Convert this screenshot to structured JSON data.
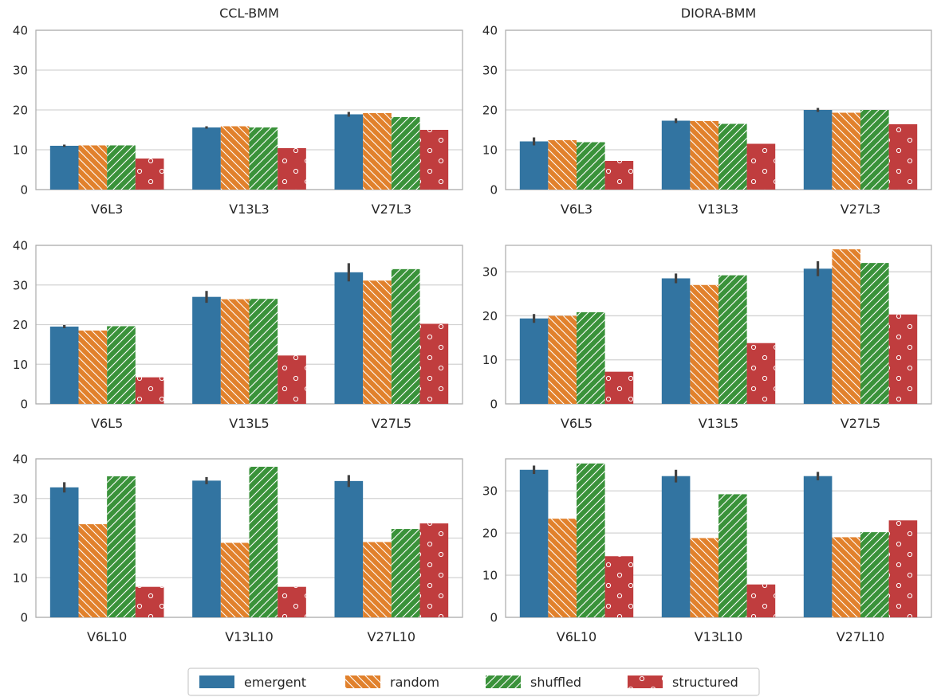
{
  "colors": {
    "emergent": "#3274a1",
    "random": "#e1812c",
    "shuffled": "#3a923a",
    "structured": "#c03d3e",
    "grid": "#d3d3d3",
    "axis": "#b0b0b0",
    "text": "#262626"
  },
  "legend": {
    "placement": "bottom-center",
    "items": [
      {
        "name": "emergent",
        "hatch": "none"
      },
      {
        "name": "random",
        "hatch": "backslash"
      },
      {
        "name": "shuffled",
        "hatch": "slash"
      },
      {
        "name": "structured",
        "hatch": "circles"
      }
    ]
  },
  "chart_data": [
    {
      "type": "bar",
      "title": "CCL-BMM",
      "row": 0,
      "col": 0,
      "categories": [
        "V6L3",
        "V13L3",
        "V27L3"
      ],
      "ylim": [
        0,
        40
      ],
      "yticks": [
        0,
        10,
        20,
        30,
        40
      ],
      "grid": true,
      "series": [
        {
          "name": "emergent",
          "values": [
            11.0,
            15.6,
            18.9
          ],
          "errors": [
            0.3,
            0.3,
            0.6
          ]
        },
        {
          "name": "random",
          "values": [
            11.1,
            15.9,
            19.2
          ]
        },
        {
          "name": "shuffled",
          "values": [
            11.1,
            15.6,
            18.2
          ]
        },
        {
          "name": "structured",
          "values": [
            7.8,
            10.4,
            15.0
          ]
        }
      ]
    },
    {
      "type": "bar",
      "title": "DIORA-BMM",
      "row": 0,
      "col": 1,
      "categories": [
        "V6L3",
        "V13L3",
        "V27L3"
      ],
      "ylim": [
        0,
        40
      ],
      "yticks": [
        0,
        10,
        20,
        30,
        40
      ],
      "grid": true,
      "series": [
        {
          "name": "emergent",
          "values": [
            12.1,
            17.3,
            20.0
          ],
          "errors": [
            1.0,
            0.6,
            0.5
          ]
        },
        {
          "name": "random",
          "values": [
            12.4,
            17.2,
            19.3
          ]
        },
        {
          "name": "shuffled",
          "values": [
            11.9,
            16.5,
            20.0
          ]
        },
        {
          "name": "structured",
          "values": [
            7.2,
            11.5,
            16.4
          ]
        }
      ]
    },
    {
      "type": "bar",
      "row": 1,
      "col": 0,
      "categories": [
        "V6L5",
        "V13L5",
        "V27L5"
      ],
      "ylim": [
        0,
        40
      ],
      "yticks": [
        0,
        10,
        20,
        30,
        40
      ],
      "grid": true,
      "series": [
        {
          "name": "emergent",
          "values": [
            19.5,
            27.0,
            33.2
          ],
          "errors": [
            0.4,
            1.5,
            2.3
          ]
        },
        {
          "name": "random",
          "values": [
            18.5,
            26.4,
            31.1
          ]
        },
        {
          "name": "shuffled",
          "values": [
            19.6,
            26.5,
            34.0
          ]
        },
        {
          "name": "structured",
          "values": [
            6.7,
            12.2,
            20.2
          ]
        }
      ]
    },
    {
      "type": "bar",
      "row": 1,
      "col": 1,
      "categories": [
        "V6L5",
        "V13L5",
        "V27L5"
      ],
      "ylim": [
        0,
        36
      ],
      "yticks": [
        0,
        10,
        20,
        30
      ],
      "grid": true,
      "series": [
        {
          "name": "emergent",
          "values": [
            19.4,
            28.5,
            30.7
          ],
          "errors": [
            1.0,
            1.1,
            1.7
          ]
        },
        {
          "name": "random",
          "values": [
            20.0,
            27.0,
            35.1
          ]
        },
        {
          "name": "shuffled",
          "values": [
            20.8,
            29.2,
            32.0
          ]
        },
        {
          "name": "structured",
          "values": [
            7.3,
            13.8,
            20.3
          ]
        }
      ]
    },
    {
      "type": "bar",
      "row": 2,
      "col": 0,
      "categories": [
        "V6L10",
        "V13L10",
        "V27L10"
      ],
      "ylim": [
        0,
        40
      ],
      "yticks": [
        0,
        10,
        20,
        30,
        40
      ],
      "grid": true,
      "series": [
        {
          "name": "emergent",
          "values": [
            32.8,
            34.5,
            34.4
          ],
          "errors": [
            1.3,
            0.9,
            1.5
          ]
        },
        {
          "name": "random",
          "values": [
            23.5,
            18.8,
            19.0
          ]
        },
        {
          "name": "shuffled",
          "values": [
            35.6,
            38.0,
            22.3
          ]
        },
        {
          "name": "structured",
          "values": [
            7.7,
            7.7,
            23.7
          ]
        }
      ]
    },
    {
      "type": "bar",
      "row": 2,
      "col": 1,
      "categories": [
        "V6L10",
        "V13L10",
        "V27L10"
      ],
      "ylim": [
        0,
        37.6
      ],
      "yticks": [
        0,
        10,
        20,
        30
      ],
      "grid": true,
      "series": [
        {
          "name": "emergent",
          "values": [
            35.0,
            33.5,
            33.5
          ],
          "errors": [
            1.0,
            1.5,
            1.0
          ]
        },
        {
          "name": "random",
          "values": [
            23.4,
            18.8,
            19.0
          ]
        },
        {
          "name": "shuffled",
          "values": [
            36.5,
            29.2,
            20.2
          ]
        },
        {
          "name": "structured",
          "values": [
            14.5,
            7.8,
            23.0
          ]
        }
      ]
    }
  ]
}
